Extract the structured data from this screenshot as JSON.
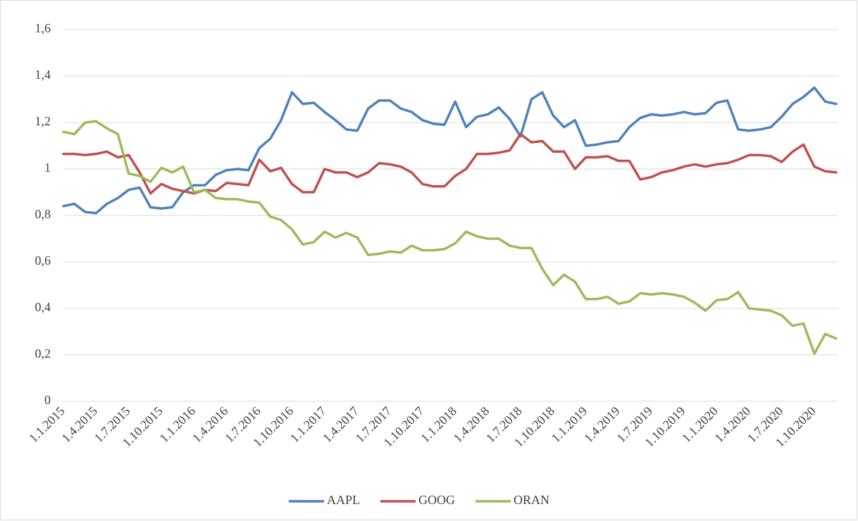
{
  "chart_data": {
    "type": "line",
    "categories": [
      "1.1.2015",
      null,
      null,
      "1.4.2015",
      null,
      null,
      "1.7.2015",
      null,
      null,
      "1.10.2015",
      null,
      null,
      "1.1.2016",
      null,
      null,
      "1.4.2016",
      null,
      null,
      "1.7.2016",
      null,
      null,
      "1.10.2016",
      null,
      null,
      "1.1.2017",
      null,
      null,
      "1.4.2017",
      null,
      null,
      "1.7.2017",
      null,
      null,
      "1.10.2017",
      null,
      null,
      "1.1.2018",
      null,
      null,
      "1.4.2018",
      null,
      null,
      "1.7.2018",
      null,
      null,
      "1.10.2018",
      null,
      null,
      "1.1.2019",
      null,
      null,
      "1.4.2019",
      null,
      null,
      "1.7.2019",
      null,
      null,
      "1.10.2019",
      null,
      null,
      "1.1.2020",
      null,
      null,
      "1.4.2020",
      null,
      null,
      "1.7.2020",
      null,
      null,
      "1.10.2020",
      null,
      null
    ],
    "series": [
      {
        "name": "AAPL",
        "color": "#4f81bd",
        "values": [
          0.84,
          0.85,
          0.815,
          0.81,
          0.85,
          0.875,
          0.91,
          0.92,
          0.835,
          0.83,
          0.835,
          0.9,
          0.93,
          0.93,
          0.975,
          0.995,
          1.0,
          0.995,
          1.09,
          1.13,
          1.21,
          1.33,
          1.28,
          1.285,
          1.245,
          1.21,
          1.17,
          1.165,
          1.26,
          1.295,
          1.295,
          1.26,
          1.245,
          1.21,
          1.195,
          1.19,
          1.29,
          1.18,
          1.225,
          1.235,
          1.265,
          1.215,
          1.14,
          1.3,
          1.33,
          1.23,
          1.18,
          1.21,
          1.1,
          1.105,
          1.115,
          1.12,
          1.18,
          1.22,
          1.235,
          1.23,
          1.235,
          1.245,
          1.235,
          1.24,
          1.285,
          1.295,
          1.17,
          1.165,
          1.17,
          1.18,
          1.225,
          1.28,
          1.31,
          1.35,
          1.29,
          1.28
        ]
      },
      {
        "name": "GOOG",
        "color": "#c0504d",
        "values": [
          1.065,
          1.065,
          1.06,
          1.065,
          1.075,
          1.05,
          1.06,
          0.985,
          0.895,
          0.935,
          0.915,
          0.905,
          0.895,
          0.91,
          0.905,
          0.94,
          0.935,
          0.93,
          1.04,
          0.99,
          1.005,
          0.935,
          0.9,
          0.9,
          1.0,
          0.985,
          0.985,
          0.965,
          0.985,
          1.025,
          1.02,
          1.01,
          0.985,
          0.935,
          0.925,
          0.925,
          0.97,
          1.0,
          1.065,
          1.065,
          1.07,
          1.08,
          1.15,
          1.115,
          1.12,
          1.075,
          1.075,
          1.0,
          1.05,
          1.05,
          1.055,
          1.035,
          1.035,
          0.955,
          0.965,
          0.985,
          0.995,
          1.01,
          1.02,
          1.01,
          1.02,
          1.025,
          1.04,
          1.06,
          1.06,
          1.055,
          1.03,
          1.075,
          1.105,
          1.01,
          0.99,
          0.985
        ]
      },
      {
        "name": "ORAN",
        "color": "#9bbb59",
        "values": [
          1.16,
          1.15,
          1.2,
          1.205,
          1.175,
          1.15,
          0.98,
          0.97,
          0.945,
          1.005,
          0.985,
          1.01,
          0.9,
          0.91,
          0.875,
          0.87,
          0.87,
          0.86,
          0.855,
          0.795,
          0.78,
          0.74,
          0.675,
          0.685,
          0.73,
          0.705,
          0.725,
          0.705,
          0.63,
          0.635,
          0.645,
          0.64,
          0.67,
          0.65,
          0.65,
          0.655,
          0.68,
          0.73,
          0.71,
          0.7,
          0.7,
          0.67,
          0.66,
          0.66,
          0.57,
          0.5,
          0.545,
          0.515,
          0.44,
          0.44,
          0.45,
          0.42,
          0.43,
          0.465,
          0.46,
          0.465,
          0.46,
          0.45,
          0.425,
          0.39,
          0.435,
          0.44,
          0.47,
          0.4,
          0.395,
          0.39,
          0.37,
          0.325,
          0.335,
          0.205,
          0.29,
          0.27
        ]
      }
    ],
    "ylim": [
      0,
      1.6
    ],
    "yticks": [
      0,
      {
        "value": 0.2,
        "label": "0,2"
      },
      {
        "value": 0.4,
        "label": "0,4"
      },
      {
        "value": 0.6,
        "label": "0,6"
      },
      {
        "value": 0.8,
        "label": "0,8"
      },
      1,
      {
        "value": 1.2,
        "label": "1,2"
      },
      {
        "value": 1.4,
        "label": "1,4"
      },
      {
        "value": 1.6,
        "label": "1,6"
      }
    ],
    "grid": true,
    "legend": "bottom"
  }
}
